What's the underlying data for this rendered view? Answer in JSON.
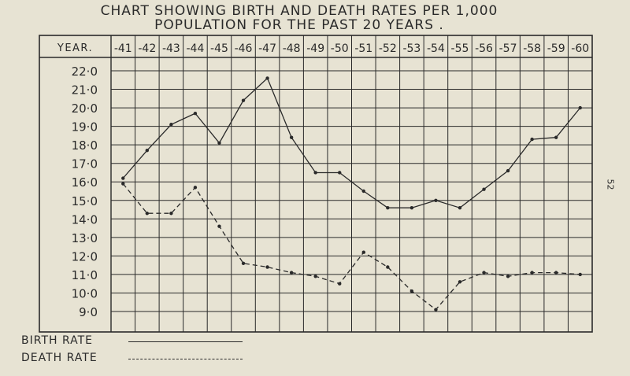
{
  "title_line1": "CHART SHOWING BIRTH AND DEATH RATES PER 1,000",
  "title_line2": "POPULATION FOR THE PAST 20 YEARS .",
  "page_number": "52",
  "legend": {
    "birth_label": "BIRTH RATE",
    "death_label": "DEATH RATE"
  },
  "chart_data": {
    "type": "line",
    "title": "CHART SHOWING BIRTH AND DEATH RATES PER 1,000 POPULATION FOR THE PAST 20 YEARS .",
    "header_label": "YEAR.",
    "categories": [
      "-41",
      "-42",
      "-43",
      "-44",
      "-45",
      "-46",
      "-47",
      "-48",
      "-49",
      "-50",
      "-51",
      "-52",
      "-53",
      "-54",
      "-55",
      "-56",
      "-57",
      "-58",
      "-59",
      "-60"
    ],
    "y_tick_labels": [
      "22·0",
      "21·0",
      "20·0",
      "19·0",
      "18·0",
      "17·0",
      "16·0",
      "15·0",
      "14·0",
      "13·0",
      "12·0",
      "11·0",
      "10·0",
      "9·0"
    ],
    "ylim": [
      8.5,
      22.5
    ],
    "grid": true,
    "legend_position": "bottom-left",
    "series": [
      {
        "name": "BIRTH RATE",
        "style": "solid",
        "values": [
          16.2,
          17.7,
          19.1,
          19.7,
          18.1,
          20.4,
          21.6,
          18.4,
          16.5,
          16.5,
          15.5,
          14.6,
          14.6,
          15.0,
          14.6,
          15.6,
          16.6,
          18.3,
          18.4,
          20.0
        ]
      },
      {
        "name": "DEATH RATE",
        "style": "dashed",
        "values": [
          15.9,
          14.3,
          14.3,
          15.7,
          13.6,
          11.6,
          11.4,
          11.1,
          10.9,
          10.5,
          12.2,
          11.4,
          10.1,
          9.1,
          10.6,
          11.1,
          10.9,
          11.1,
          11.1,
          11.0
        ]
      }
    ]
  }
}
